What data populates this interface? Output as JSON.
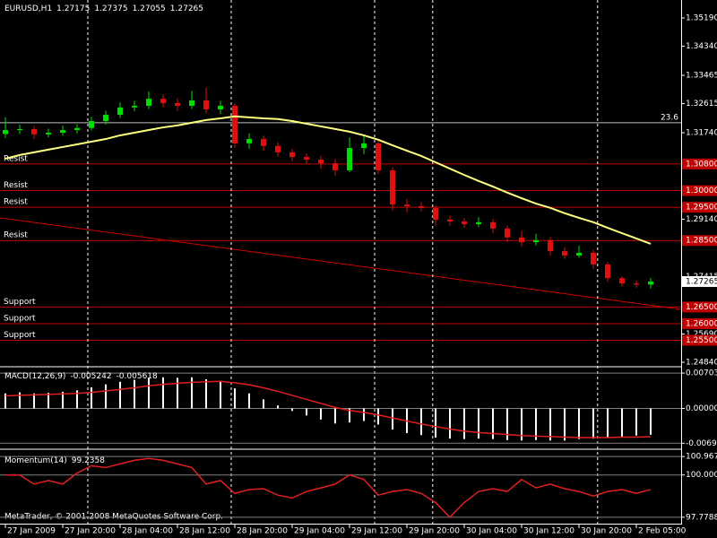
{
  "footer": "MetaTrader, © 2001-2008 MetaQuotes Software Corp.",
  "chart_data": [
    {
      "type": "candlestick",
      "title": "EURUSD,H1",
      "up_color": "#00e000",
      "down_color": "#e01010",
      "xlim": [
        -0.375,
        47.125
      ],
      "xticks": [
        {
          "value": 0,
          "label": "27 Jan 2009"
        },
        {
          "value": 4,
          "label": "27 Jan 20:00"
        },
        {
          "value": 8,
          "label": "28 Jan 04:00"
        },
        {
          "value": 12,
          "label": "28 Jan 12:00"
        },
        {
          "value": 16,
          "label": "28 Jan 20:00"
        },
        {
          "value": 20,
          "label": "29 Jan 04:00"
        },
        {
          "value": 24,
          "label": "29 Jan 12:00"
        },
        {
          "value": 28,
          "label": "29 Jan 20:00"
        },
        {
          "value": 32,
          "label": "30 Jan 04:00"
        },
        {
          "value": 36,
          "label": "30 Jan 12:00"
        },
        {
          "value": 40,
          "label": "30 Jan 20:00"
        },
        {
          "value": 44,
          "label": "2 Feb 05:00"
        }
      ],
      "separators": [
        5.75,
        15.75,
        25.75,
        29.8,
        41.3
      ],
      "ylim": [
        1.24732,
        1.35729
      ],
      "yticks": [
        {
          "value": 1.3519,
          "label": "1.35190"
        },
        {
          "value": 1.3434,
          "label": "1.34340"
        },
        1.33465,
        1.32615,
        {
          "value": 1.3174,
          "label": "1.31740"
        },
        {
          "value": 1.2914,
          "label": "1.29140"
        },
        1.27415,
        {
          "value": 1.2569,
          "label": "1.25690"
        },
        {
          "value": 1.2484,
          "label": "1.24840"
        }
      ],
      "open": [
        1.317,
        1.3182,
        1.3185,
        1.3169,
        1.3174,
        1.3182,
        1.3188,
        1.3209,
        1.3228,
        1.325,
        1.3255,
        1.3276,
        1.3263,
        1.3255,
        1.3271,
        1.3244,
        1.3255,
        1.3142,
        1.3155,
        1.3134,
        1.3115,
        1.3101,
        1.3093,
        1.3082,
        1.3061,
        1.3128,
        1.3142,
        1.3061,
        1.2958,
        1.2953,
        1.2948,
        1.2913,
        1.2907,
        1.2899,
        1.2905,
        1.2886,
        1.2859,
        1.2845,
        1.2851,
        1.2818,
        1.2805,
        1.2813,
        1.2778,
        1.2737,
        1.2721,
        1.27175
      ],
      "high": [
        1.322,
        1.3198,
        1.3195,
        1.3186,
        1.3195,
        1.32,
        1.3222,
        1.324,
        1.3265,
        1.327,
        1.3298,
        1.329,
        1.3278,
        1.33,
        1.331,
        1.327,
        1.3262,
        1.3172,
        1.3165,
        1.3145,
        1.3125,
        1.3112,
        1.3105,
        1.3095,
        1.316,
        1.3165,
        1.315,
        1.307,
        1.2975,
        1.2965,
        1.2955,
        1.2925,
        1.2918,
        1.292,
        1.2915,
        1.2895,
        1.288,
        1.287,
        1.286,
        1.283,
        1.2835,
        1.2822,
        1.2785,
        1.2742,
        1.273,
        1.27375
      ],
      "low": [
        1.3158,
        1.317,
        1.3155,
        1.316,
        1.3165,
        1.3172,
        1.318,
        1.3198,
        1.3218,
        1.3238,
        1.3245,
        1.325,
        1.324,
        1.3245,
        1.3232,
        1.323,
        1.313,
        1.3125,
        1.312,
        1.3102,
        1.3088,
        1.308,
        1.3065,
        1.3045,
        1.3055,
        1.311,
        1.305,
        1.294,
        1.2935,
        1.2938,
        1.2895,
        1.2895,
        1.2888,
        1.289,
        1.2872,
        1.2845,
        1.2832,
        1.2835,
        1.2805,
        1.2795,
        1.2798,
        1.2765,
        1.2725,
        1.2712,
        1.2708,
        1.27055
      ],
      "close": [
        1.3182,
        1.3185,
        1.3169,
        1.3174,
        1.3182,
        1.3188,
        1.3209,
        1.3228,
        1.325,
        1.3255,
        1.3276,
        1.3263,
        1.3255,
        1.3271,
        1.3244,
        1.3255,
        1.3142,
        1.3155,
        1.3134,
        1.3115,
        1.3101,
        1.3093,
        1.3082,
        1.3061,
        1.3128,
        1.3142,
        1.3061,
        1.2958,
        1.2953,
        1.2948,
        1.2913,
        1.2907,
        1.2899,
        1.2905,
        1.2886,
        1.2859,
        1.2845,
        1.2851,
        1.2818,
        1.2805,
        1.2813,
        1.2778,
        1.2737,
        1.2721,
        1.27175,
        1.27265
      ],
      "ma": {
        "color": "#ffff80",
        "values": [
          1.3096,
          1.3107,
          1.3115,
          1.3123,
          1.3131,
          1.3139,
          1.3147,
          1.3155,
          1.3166,
          1.3174,
          1.3182,
          1.319,
          1.3196,
          1.3204,
          1.3212,
          1.3217,
          1.3223,
          1.322,
          1.3217,
          1.3215,
          1.3209,
          1.3201,
          1.3193,
          1.3185,
          1.3177,
          1.3166,
          1.3153,
          1.3136,
          1.312,
          1.3104,
          1.3085,
          1.3066,
          1.3047,
          1.3029,
          1.3012,
          1.2994,
          1.2977,
          1.2961,
          1.2948,
          1.2932,
          1.2918,
          1.2905,
          1.2888,
          1.2872,
          1.2856,
          1.284
        ]
      },
      "hline_color": "#c00000",
      "hlines": [
        {
          "value": 1.308,
          "label": "1.30800",
          "text": "Resist"
        },
        {
          "value": 1.3,
          "label": "1.30000",
          "text": "Resist"
        },
        {
          "value": 1.295,
          "label": "1.29500",
          "text": "Resist"
        },
        {
          "value": 1.285,
          "label": "1.28500",
          "text": "Resist"
        },
        {
          "value": 1.265,
          "label": "1.26500",
          "text": "Support"
        },
        {
          "value": 1.26,
          "label": "1.26000",
          "text": "Support"
        },
        {
          "value": 1.255,
          "label": "1.25500",
          "text": "Support"
        }
      ],
      "trendlines": [
        {
          "color": "#d00000",
          "x": [
            -0.375,
            47.125
          ],
          "y": [
            1.2918,
            1.2643
          ]
        }
      ],
      "levels": [
        {
          "value": 1.3204,
          "label": "23.6",
          "color": "#c0c0c0"
        }
      ]
    },
    {
      "type": "macd",
      "title": "MACD(12,26,9)",
      "ylim": [
        -0.00794,
        0.00812
      ],
      "yticks": [
        0.007035,
        {
          "value": 0,
          "label": "0.000000"
        },
        -0.00692
      ],
      "histogram": {
        "color": "#ffffff",
        "values": [
          0.003,
          0.0032,
          0.003,
          0.0031,
          0.0033,
          0.0036,
          0.0042,
          0.0048,
          0.0053,
          0.0057,
          0.0061,
          0.0062,
          0.0061,
          0.0062,
          0.0058,
          0.0055,
          0.004,
          0.003,
          0.0018,
          0.0006,
          -0.0005,
          -0.0014,
          -0.0022,
          -0.003,
          -0.0028,
          -0.0025,
          -0.0032,
          -0.0042,
          -0.0049,
          -0.0053,
          -0.0058,
          -0.006,
          -0.0061,
          -0.006,
          -0.0061,
          -0.0063,
          -0.0064,
          -0.0063,
          -0.0064,
          -0.0064,
          -0.0061,
          -0.006,
          -0.0058,
          -0.0056,
          -0.0054,
          -0.005242
        ]
      },
      "signal": {
        "color": "#e02020",
        "values": [
          0.0025,
          0.0026,
          0.0027,
          0.0028,
          0.0029,
          0.003,
          0.0032,
          0.0035,
          0.0038,
          0.0041,
          0.0045,
          0.0048,
          0.005,
          0.0052,
          0.0053,
          0.0054,
          0.0051,
          0.0047,
          0.0041,
          0.0034,
          0.0026,
          0.0018,
          0.001,
          0.0002,
          -0.0004,
          -0.0008,
          -0.0013,
          -0.0019,
          -0.0025,
          -0.0031,
          -0.0036,
          -0.0041,
          -0.0045,
          -0.0048,
          -0.005,
          -0.0052,
          -0.0054,
          -0.0055,
          -0.0056,
          -0.0057,
          -0.0058,
          -0.0058,
          -0.0058,
          -0.0057,
          -0.0057,
          -0.005618
        ]
      }
    },
    {
      "type": "line",
      "title": "Momentum(14)",
      "color": "#e02020",
      "ylim": [
        97.441,
        101.305
      ],
      "yticks": [
        100.9672,
        {
          "value": 100,
          "label": "100.0000"
        },
        97.7788
      ],
      "values": [
        100.0,
        100.0,
        99.52,
        99.71,
        99.52,
        100.1,
        100.48,
        100.39,
        100.58,
        100.77,
        100.87,
        100.77,
        100.58,
        100.39,
        99.52,
        99.71,
        99.03,
        99.23,
        99.28,
        98.94,
        98.79,
        99.13,
        99.32,
        99.52,
        100.0,
        99.76,
        98.94,
        99.13,
        99.23,
        99.03,
        98.55,
        97.78,
        98.55,
        99.13,
        99.28,
        99.13,
        99.76,
        99.32,
        99.52,
        99.28,
        99.13,
        98.89,
        99.13,
        99.23,
        99.03,
        99.2358
      ]
    }
  ]
}
